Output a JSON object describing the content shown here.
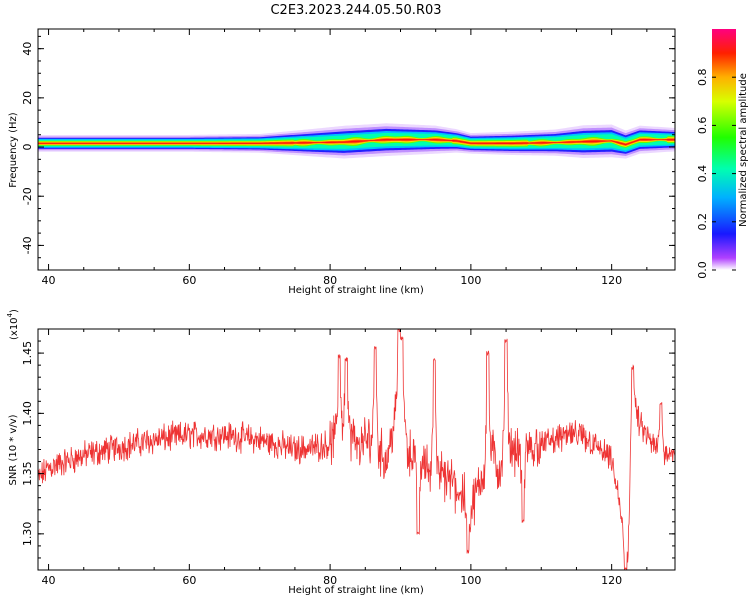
{
  "chart_data": [
    {
      "type": "heatmap",
      "title": "C2E3.2023.244.05.50.R03",
      "xlabel": "Height of straight line (km)",
      "ylabel": "Frequency (Hz)",
      "xlim": [
        38.5,
        129
      ],
      "ylim": [
        -50,
        48
      ],
      "x_ticks": [
        40,
        60,
        80,
        100,
        120
      ],
      "y_ticks": [
        40,
        20,
        0,
        -20,
        -40
      ],
      "y_tick_labels": [
        "40",
        "20",
        "0",
        "-20",
        "-40"
      ],
      "colorbar": {
        "label": "Normalized spectral amplitude",
        "range": [
          0,
          1
        ],
        "ticks": [
          "0.0",
          "0.2",
          "0.4",
          "0.6",
          "0.8"
        ],
        "colormap": "gist_rainbow_r"
      },
      "band": {
        "description_points_x": [
          39,
          60,
          70,
          78,
          82,
          88,
          95,
          98,
          100,
          106,
          112,
          116,
          120,
          122,
          124,
          129
        ],
        "center_freq_hz": [
          1.5,
          1.5,
          1.5,
          1.8,
          2.0,
          3.0,
          3.0,
          2.5,
          1.5,
          1.5,
          1.8,
          2.2,
          2.5,
          1.0,
          3.0,
          3.0
        ],
        "half_width_hz": [
          1.8,
          1.8,
          2.0,
          3.0,
          3.5,
          3.5,
          3.0,
          2.5,
          2.2,
          2.5,
          2.8,
          3.5,
          3.5,
          3.0,
          3.0,
          2.5
        ]
      },
      "grid": false
    },
    {
      "type": "line",
      "title": "",
      "xlabel": "Height of straight line (km)",
      "ylabel": "SNR (10 * v/v)",
      "y_multiplier_label": "(x10",
      "y_multiplier_exp": "4",
      "y_multiplier_close": ")",
      "xlim": [
        38.5,
        129
      ],
      "ylim": [
        1.27,
        1.47
      ],
      "x_ticks": [
        40,
        60,
        80,
        100,
        120
      ],
      "y_ticks": [
        1.3,
        1.35,
        1.4,
        1.45
      ],
      "y_tick_labels": [
        "1.30",
        "1.35",
        "1.40",
        "1.45"
      ],
      "series": [
        {
          "color": "#ee3333",
          "trend_x": [
            38.5,
            40,
            45,
            50,
            55,
            60,
            65,
            70,
            75,
            78,
            80,
            82,
            84,
            86,
            88,
            90,
            91,
            93,
            95,
            97,
            99,
            100,
            102,
            103,
            104,
            105,
            106,
            108,
            110,
            114,
            116,
            118,
            120,
            121,
            121.8,
            122.3,
            123,
            124,
            126,
            129
          ],
          "trend_y": [
            1.345,
            1.355,
            1.365,
            1.372,
            1.378,
            1.382,
            1.382,
            1.378,
            1.37,
            1.372,
            1.375,
            1.39,
            1.372,
            1.38,
            1.36,
            1.42,
            1.37,
            1.36,
            1.35,
            1.345,
            1.33,
            1.32,
            1.355,
            1.37,
            1.35,
            1.38,
            1.37,
            1.37,
            1.375,
            1.382,
            1.38,
            1.372,
            1.36,
            1.33,
            1.29,
            1.285,
            1.41,
            1.39,
            1.372,
            1.368
          ],
          "spikes": [
            {
              "x": 81.3,
              "y": 1.448
            },
            {
              "x": 82.3,
              "y": 1.445
            },
            {
              "x": 86.4,
              "y": 1.455
            },
            {
              "x": 89.8,
              "y": 1.47
            },
            {
              "x": 90.2,
              "y": 1.462
            },
            {
              "x": 92.5,
              "y": 1.3
            },
            {
              "x": 94.8,
              "y": 1.445
            },
            {
              "x": 99.6,
              "y": 1.285
            },
            {
              "x": 102.4,
              "y": 1.45
            },
            {
              "x": 105.0,
              "y": 1.46
            },
            {
              "x": 107.4,
              "y": 1.31
            },
            {
              "x": 122.0,
              "y": 1.27
            },
            {
              "x": 123.0,
              "y": 1.438
            },
            {
              "x": 127.0,
              "y": 1.408
            }
          ]
        }
      ],
      "grid": false
    }
  ]
}
